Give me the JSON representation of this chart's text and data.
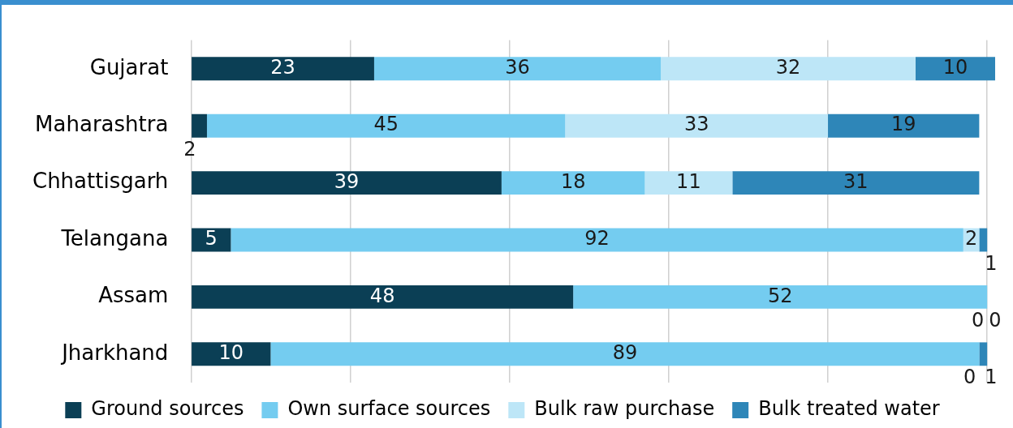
{
  "chart_data": {
    "type": "bar",
    "orientation": "horizontal",
    "stacked": true,
    "categories": [
      "Gujarat",
      "Maharashtra",
      "Chhattisgarh",
      "Telangana",
      "Assam",
      "Jharkhand"
    ],
    "series": [
      {
        "name": "Ground sources",
        "color": "#0b3f55",
        "values": [
          23,
          2,
          39,
          5,
          48,
          10
        ]
      },
      {
        "name": "Own surface sources",
        "color": "#74ccf0",
        "values": [
          36,
          45,
          18,
          92,
          52,
          89
        ]
      },
      {
        "name": "Bulk raw purchase",
        "color": "#bde6f7",
        "values": [
          32,
          33,
          11,
          2,
          0,
          0
        ]
      },
      {
        "name": "Bulk treated water",
        "color": "#2e86b8",
        "values": [
          10,
          19,
          31,
          1,
          0,
          1
        ]
      }
    ],
    "xticks": [
      {
        "value": 0,
        "label": null
      },
      {
        "value": 20,
        "label": null
      },
      {
        "value": 40,
        "label": null
      },
      {
        "value": 60,
        "label": null
      },
      {
        "value": 80,
        "label": null
      },
      {
        "value": 100,
        "label": null
      }
    ],
    "tick_labels": "y",
    "grid": "x",
    "legend": "bottom",
    "data_labels": true
  }
}
